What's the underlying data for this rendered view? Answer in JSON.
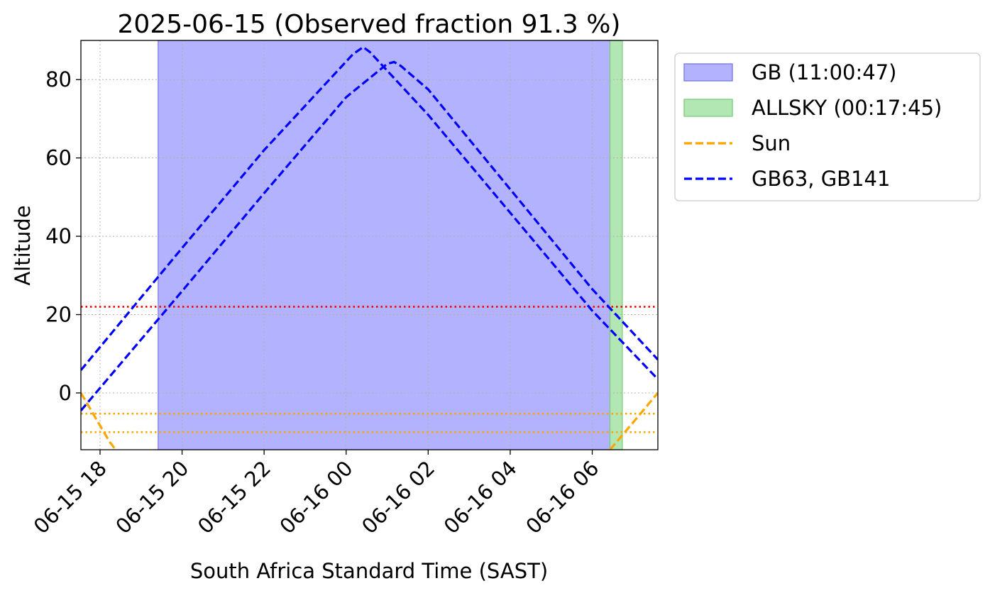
{
  "chart_data": {
    "type": "line",
    "title": "2025-06-15 (Observed fraction 91.3 %)",
    "xlabel": "South Africa Standard Time (SAST)",
    "ylabel": "Altitude",
    "xlim": [
      "2025-06-15T17:32",
      "2025-06-16T07:36"
    ],
    "ylim": [
      -14.5,
      90
    ],
    "xticks": [
      {
        "t": "2025-06-15T18:00",
        "label": "06-15 18"
      },
      {
        "t": "2025-06-15T20:00",
        "label": "06-15 20"
      },
      {
        "t": "2025-06-15T22:00",
        "label": "06-15 22"
      },
      {
        "t": "2025-06-16T00:00",
        "label": "06-16 00"
      },
      {
        "t": "2025-06-16T02:00",
        "label": "06-16 02"
      },
      {
        "t": "2025-06-16T04:00",
        "label": "06-16 04"
      },
      {
        "t": "2025-06-16T06:00",
        "label": "06-16 06"
      }
    ],
    "yticks": [
      0,
      20,
      40,
      60,
      80
    ],
    "grid": true,
    "legend_position": "outside-right-top",
    "shaded_intervals": [
      {
        "name": "GB (11:00:47)",
        "start": "2025-06-15T19:25",
        "end": "2025-06-16T06:26",
        "color": "#b2b2ff",
        "edge": "#7777e6"
      },
      {
        "name": "ALLSKY (00:17:45)",
        "start": "2025-06-16T06:26",
        "end": "2025-06-16T06:44",
        "color": "#b2e6b2",
        "edge": "#77cc77"
      }
    ],
    "hlines": [
      {
        "y": 22,
        "color": "#ff0000",
        "style": "dotted"
      },
      {
        "y": -5.3,
        "color": "#ffa500",
        "style": "dotted"
      },
      {
        "y": -10,
        "color": "#ffa500",
        "style": "dotted"
      }
    ],
    "series": [
      {
        "name": "Sun",
        "color": "#ffa500",
        "style": "dashed",
        "points": [
          {
            "t": "2025-06-15T17:32",
            "y": 0
          },
          {
            "t": "2025-06-15T18:14",
            "y": -12.5
          },
          {
            "t": "2025-06-15T18:23",
            "y": -14.5
          }
        ]
      },
      {
        "name": "Sun",
        "color": "#ffa500",
        "style": "dashed",
        "points": [
          {
            "t": "2025-06-16T06:26",
            "y": -14.5
          },
          {
            "t": "2025-06-16T07:00",
            "y": -7.5
          },
          {
            "t": "2025-06-16T07:36",
            "y": 0
          }
        ]
      },
      {
        "name": "GB63, GB141",
        "color": "#0000ff",
        "style": "dashed",
        "points": [
          {
            "t": "2025-06-15T17:32",
            "y": 5.8
          },
          {
            "t": "2025-06-15T20:00",
            "y": 37
          },
          {
            "t": "2025-06-15T22:00",
            "y": 62
          },
          {
            "t": "2025-06-16T00:10",
            "y": 86.5
          },
          {
            "t": "2025-06-16T00:25",
            "y": 88.3
          },
          {
            "t": "2025-06-16T00:35",
            "y": 87
          },
          {
            "t": "2025-06-16T02:00",
            "y": 71
          },
          {
            "t": "2025-06-16T04:00",
            "y": 46
          },
          {
            "t": "2025-06-16T06:00",
            "y": 21
          },
          {
            "t": "2025-06-16T07:36",
            "y": 3.5
          }
        ]
      },
      {
        "name": "GB63, GB141",
        "color": "#0000ff",
        "style": "dashed",
        "points": [
          {
            "t": "2025-06-15T17:32",
            "y": -4.5
          },
          {
            "t": "2025-06-15T20:00",
            "y": 26
          },
          {
            "t": "2025-06-15T22:00",
            "y": 51
          },
          {
            "t": "2025-06-16T00:00",
            "y": 75.5
          },
          {
            "t": "2025-06-16T01:00",
            "y": 84
          },
          {
            "t": "2025-06-16T01:10",
            "y": 84.5
          },
          {
            "t": "2025-06-16T01:20",
            "y": 83.5
          },
          {
            "t": "2025-06-16T02:00",
            "y": 77.5
          },
          {
            "t": "2025-06-16T04:00",
            "y": 52
          },
          {
            "t": "2025-06-16T06:00",
            "y": 26.5
          },
          {
            "t": "2025-06-16T07:36",
            "y": 8.5
          }
        ]
      }
    ],
    "legend": [
      {
        "label": "GB (11:00:47)",
        "kind": "patch",
        "color": "#b2b2ff",
        "edge": "#7777e6"
      },
      {
        "label": "ALLSKY (00:17:45)",
        "kind": "patch",
        "color": "#b2e6b2",
        "edge": "#77cc77"
      },
      {
        "label": "Sun",
        "kind": "line",
        "color": "#ffa500"
      },
      {
        "label": "GB63, GB141",
        "kind": "line",
        "color": "#0000ff"
      }
    ]
  }
}
